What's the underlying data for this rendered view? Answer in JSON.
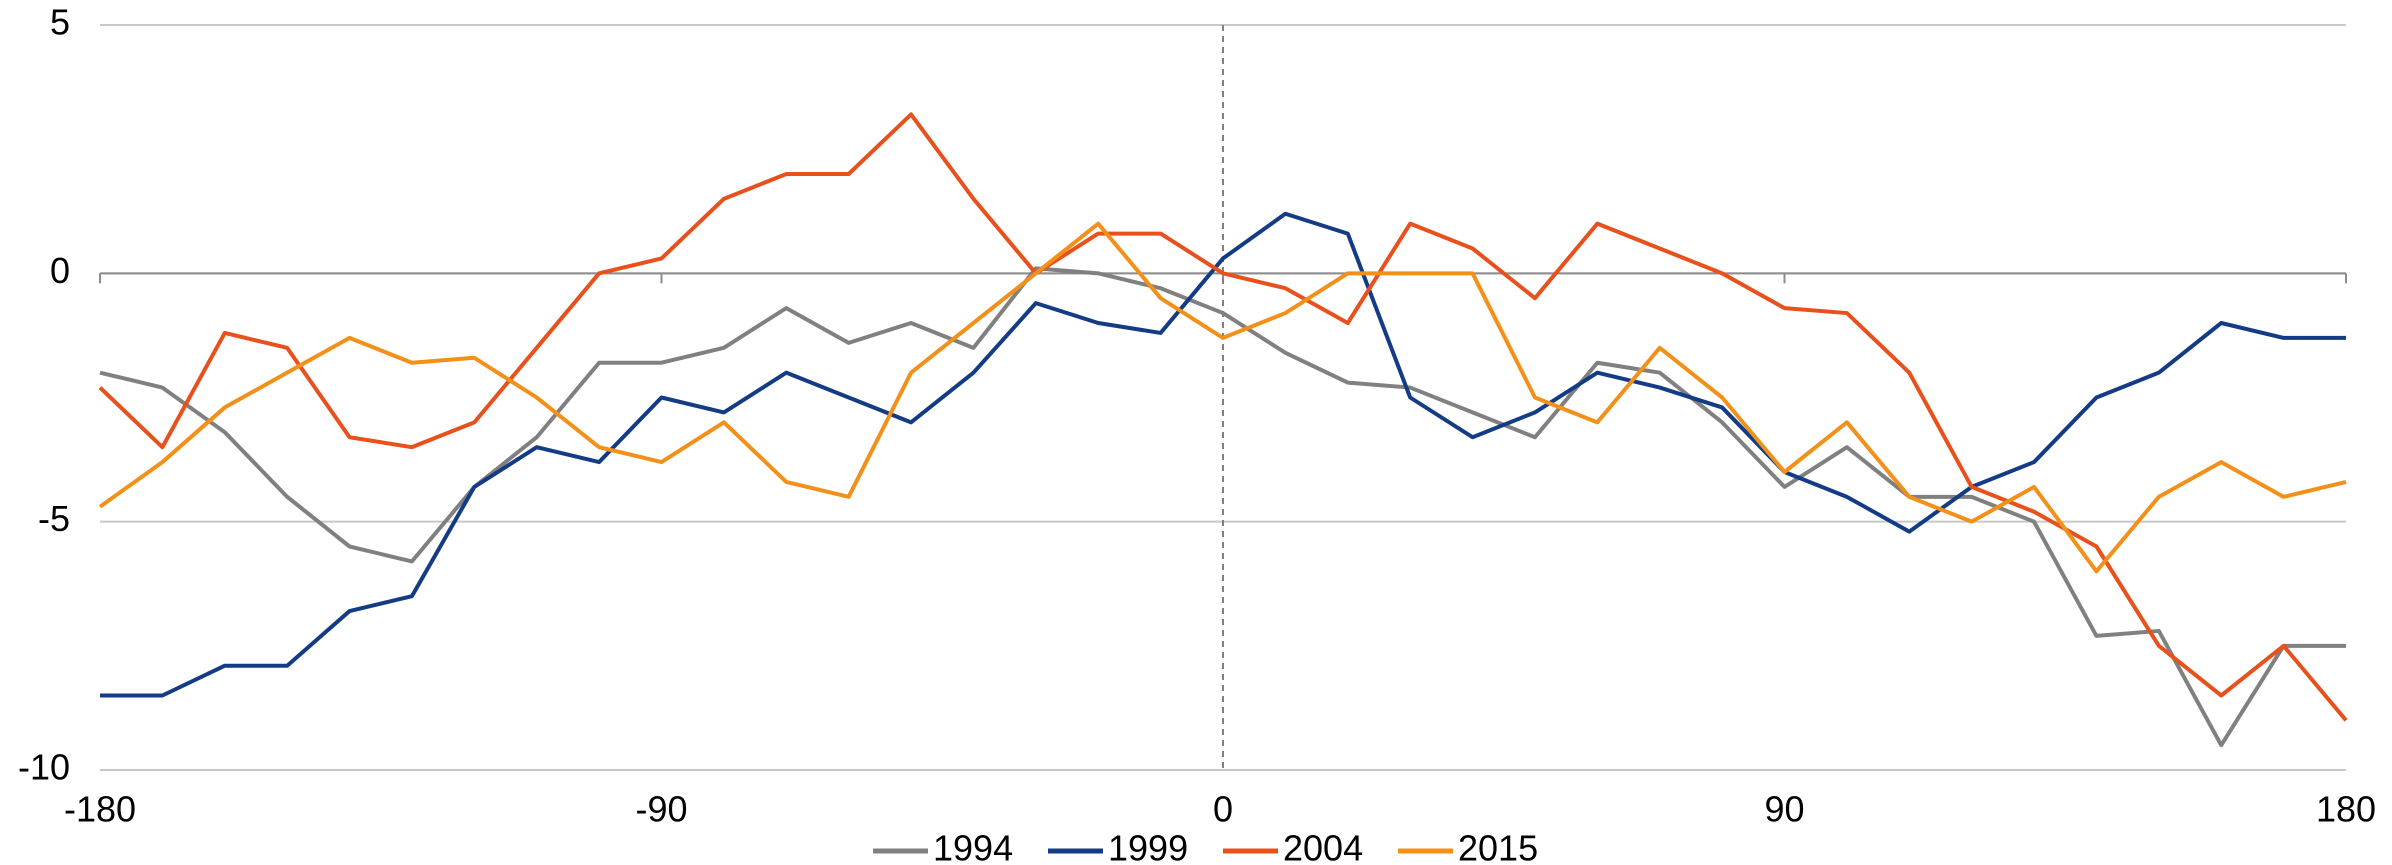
{
  "chart_data": {
    "type": "line",
    "x": [
      -180,
      -170,
      -160,
      -150,
      -140,
      -130,
      -120,
      -110,
      -100,
      -90,
      -80,
      -70,
      -60,
      -50,
      -40,
      -30,
      -20,
      -10,
      0,
      10,
      20,
      30,
      40,
      50,
      60,
      70,
      80,
      90,
      100,
      110,
      120,
      130,
      140,
      150,
      160,
      170,
      180
    ],
    "series": [
      {
        "name": "1994",
        "color": "#808080",
        "values": [
          -2,
          -2.3,
          -3.2,
          -4.5,
          -5.5,
          -5.8,
          -4.3,
          -3.3,
          -1.8,
          -1.8,
          -1.5,
          -0.7,
          -1.4,
          -1,
          -1.5,
          0.1,
          0,
          -0.3,
          -0.8,
          -1.6,
          -2.2,
          -2.3,
          -2.8,
          -3.3,
          -1.8,
          -2,
          -3,
          -4.3,
          -3.5,
          -4.5,
          -4.5,
          -5,
          -7.3,
          -7.2,
          -9.5,
          -7.5,
          -7.5
        ]
      },
      {
        "name": "1999",
        "color": "#133b86",
        "values": [
          -8.5,
          -8.5,
          -7.9,
          -7.9,
          -6.8,
          -6.5,
          -4.3,
          -3.5,
          -3.8,
          -2.5,
          -2.8,
          -2,
          -2.5,
          -3,
          -2,
          -0.6,
          -1,
          -1.2,
          0.3,
          1.2,
          0.8,
          -2.5,
          -3.3,
          -2.8,
          -2,
          -2.3,
          -2.7,
          -4,
          -4.5,
          -5.2,
          -4.3,
          -3.8,
          -2.5,
          -2,
          -1,
          -1.3,
          -1.3
        ]
      },
      {
        "name": "2004",
        "color": "#e8501c",
        "values": [
          -2.3,
          -3.5,
          -1.2,
          -1.5,
          -3.3,
          -3.5,
          -3,
          -1.5,
          0,
          0.3,
          1.5,
          2,
          2,
          3.2,
          1.5,
          0,
          0.8,
          0.8,
          0,
          -0.3,
          -1,
          1,
          0.5,
          -0.5,
          1,
          0.5,
          0,
          -0.7,
          -0.8,
          -2,
          -4.3,
          -4.8,
          -5.5,
          -7.5,
          -8.5,
          -7.5,
          -9
        ]
      },
      {
        "name": "2015",
        "color": "#f39019",
        "values": [
          -4.7,
          -3.8,
          -2.7,
          -2,
          -1.3,
          -1.8,
          -1.7,
          -2.5,
          -3.5,
          -3.8,
          -3,
          -4.2,
          -4.5,
          -2,
          -1,
          0,
          1,
          -0.5,
          -1.3,
          -0.8,
          0,
          0,
          0,
          -2.5,
          -3,
          -1.5,
          -2.5,
          -4,
          -3,
          -4.5,
          -5,
          -4.3,
          -6,
          -4.5,
          -3.8,
          -4.5,
          -4.2
        ]
      }
    ],
    "xlim": [
      -180,
      180
    ],
    "xticks": [
      -180,
      -90,
      0,
      90,
      180
    ],
    "ylim": [
      -10,
      5
    ],
    "yticks": [
      -10,
      -5,
      0,
      5
    ],
    "grid": true,
    "legend": "bottom"
  }
}
